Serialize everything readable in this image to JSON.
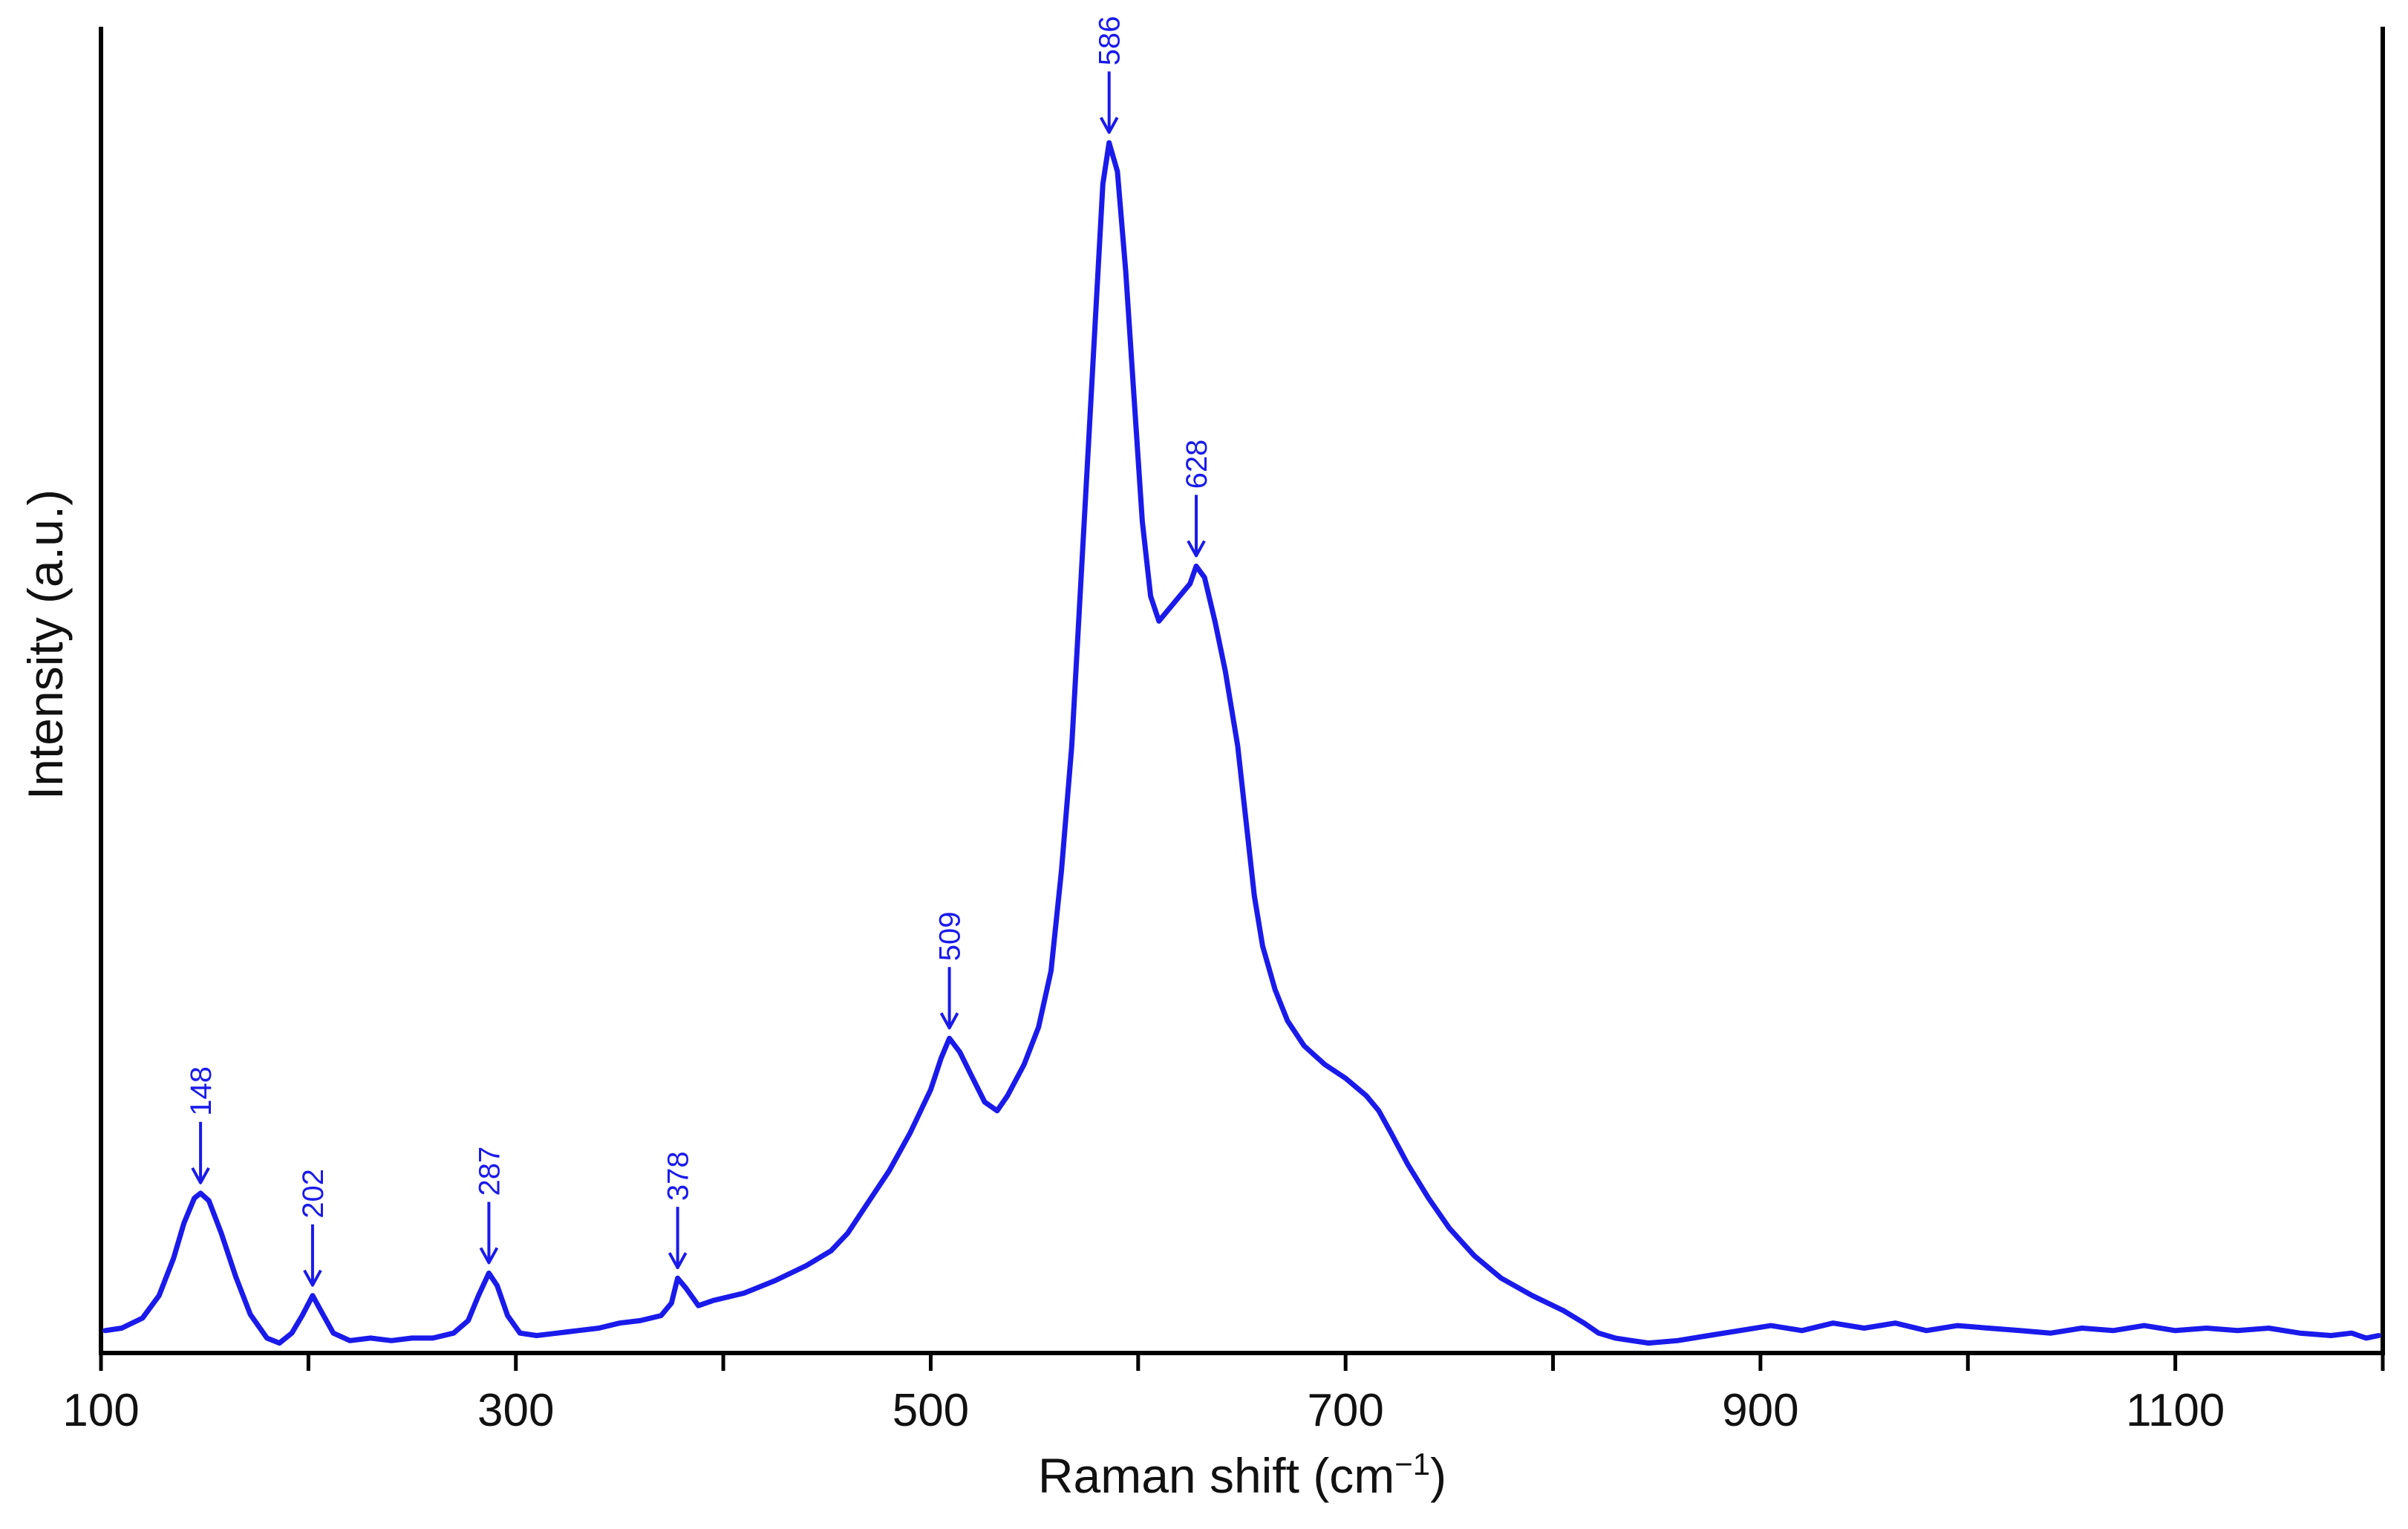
{
  "chart_data": {
    "type": "line",
    "title": "",
    "xlabel": "Raman shift (cm",
    "xlabel_superscript": "−1",
    "xlabel_suffix": ")",
    "ylabel": "Intensity (a.u.)",
    "xlim": [
      100,
      1200
    ],
    "ylim": [
      0,
      1.0
    ],
    "x_ticks_major_labeled": [
      100,
      300,
      500,
      700,
      900,
      1100
    ],
    "x_ticks_minor": [
      200,
      400,
      600,
      800,
      1000,
      1200
    ],
    "grid": false,
    "legend": "none",
    "line_color": "#1a1aeb",
    "series": [
      {
        "points": [
          [
            102,
            0.012
          ],
          [
            110,
            0.014
          ],
          [
            120,
            0.022
          ],
          [
            128,
            0.04
          ],
          [
            135,
            0.07
          ],
          [
            140,
            0.098
          ],
          [
            145,
            0.118
          ],
          [
            148,
            0.122
          ],
          [
            152,
            0.116
          ],
          [
            158,
            0.09
          ],
          [
            165,
            0.055
          ],
          [
            172,
            0.025
          ],
          [
            180,
            0.006
          ],
          [
            186,
            0.002
          ],
          [
            192,
            0.01
          ],
          [
            197,
            0.024
          ],
          [
            202,
            0.04
          ],
          [
            206,
            0.028
          ],
          [
            212,
            0.01
          ],
          [
            220,
            0.004
          ],
          [
            230,
            0.006
          ],
          [
            240,
            0.004
          ],
          [
            250,
            0.006
          ],
          [
            260,
            0.006
          ],
          [
            270,
            0.01
          ],
          [
            277,
            0.02
          ],
          [
            282,
            0.04
          ],
          [
            287,
            0.058
          ],
          [
            291,
            0.048
          ],
          [
            296,
            0.024
          ],
          [
            302,
            0.01
          ],
          [
            310,
            0.008
          ],
          [
            320,
            0.01
          ],
          [
            330,
            0.012
          ],
          [
            340,
            0.014
          ],
          [
            350,
            0.018
          ],
          [
            360,
            0.02
          ],
          [
            370,
            0.024
          ],
          [
            375,
            0.034
          ],
          [
            378,
            0.054
          ],
          [
            382,
            0.046
          ],
          [
            388,
            0.032
          ],
          [
            395,
            0.036
          ],
          [
            410,
            0.042
          ],
          [
            425,
            0.052
          ],
          [
            440,
            0.064
          ],
          [
            452,
            0.076
          ],
          [
            460,
            0.09
          ],
          [
            470,
            0.115
          ],
          [
            480,
            0.14
          ],
          [
            490,
            0.17
          ],
          [
            500,
            0.205
          ],
          [
            505,
            0.23
          ],
          [
            509,
            0.246
          ],
          [
            514,
            0.235
          ],
          [
            520,
            0.215
          ],
          [
            526,
            0.195
          ],
          [
            532,
            0.188
          ],
          [
            537,
            0.2
          ],
          [
            545,
            0.225
          ],
          [
            552,
            0.255
          ],
          [
            558,
            0.3
          ],
          [
            563,
            0.38
          ],
          [
            568,
            0.48
          ],
          [
            572,
            0.6
          ],
          [
            576,
            0.72
          ],
          [
            580,
            0.84
          ],
          [
            583,
            0.93
          ],
          [
            586,
            0.963
          ],
          [
            590,
            0.94
          ],
          [
            594,
            0.86
          ],
          [
            598,
            0.76
          ],
          [
            602,
            0.66
          ],
          [
            606,
            0.6
          ],
          [
            610,
            0.58
          ],
          [
            614,
            0.588
          ],
          [
            620,
            0.6
          ],
          [
            625,
            0.61
          ],
          [
            628,
            0.624
          ],
          [
            632,
            0.615
          ],
          [
            637,
            0.58
          ],
          [
            642,
            0.54
          ],
          [
            648,
            0.48
          ],
          [
            652,
            0.42
          ],
          [
            656,
            0.36
          ],
          [
            660,
            0.32
          ],
          [
            666,
            0.285
          ],
          [
            672,
            0.26
          ],
          [
            680,
            0.24
          ],
          [
            690,
            0.225
          ],
          [
            700,
            0.214
          ],
          [
            710,
            0.2
          ],
          [
            716,
            0.188
          ],
          [
            722,
            0.17
          ],
          [
            730,
            0.145
          ],
          [
            740,
            0.118
          ],
          [
            750,
            0.094
          ],
          [
            762,
            0.072
          ],
          [
            775,
            0.054
          ],
          [
            790,
            0.04
          ],
          [
            805,
            0.028
          ],
          [
            815,
            0.018
          ],
          [
            822,
            0.01
          ],
          [
            830,
            0.006
          ],
          [
            838,
            0.004
          ],
          [
            846,
            0.002
          ],
          [
            860,
            0.004
          ],
          [
            875,
            0.008
          ],
          [
            890,
            0.012
          ],
          [
            905,
            0.016
          ],
          [
            920,
            0.012
          ],
          [
            935,
            0.018
          ],
          [
            950,
            0.014
          ],
          [
            965,
            0.018
          ],
          [
            980,
            0.012
          ],
          [
            995,
            0.016
          ],
          [
            1010,
            0.014
          ],
          [
            1025,
            0.012
          ],
          [
            1040,
            0.01
          ],
          [
            1055,
            0.014
          ],
          [
            1070,
            0.012
          ],
          [
            1085,
            0.016
          ],
          [
            1100,
            0.012
          ],
          [
            1115,
            0.014
          ],
          [
            1130,
            0.012
          ],
          [
            1145,
            0.014
          ],
          [
            1160,
            0.01
          ],
          [
            1175,
            0.008
          ],
          [
            1185,
            0.01
          ],
          [
            1192,
            0.006
          ],
          [
            1198,
            0.008
          ]
        ]
      }
    ],
    "peak_annotations": [
      {
        "label": "148",
        "x": 148,
        "y": 0.122
      },
      {
        "label": "202",
        "x": 202,
        "y": 0.04
      },
      {
        "label": "287",
        "x": 287,
        "y": 0.058
      },
      {
        "label": "378",
        "x": 378,
        "y": 0.054
      },
      {
        "label": "509",
        "x": 509,
        "y": 0.246
      },
      {
        "label": "586",
        "x": 586,
        "y": 0.963
      },
      {
        "label": "628",
        "x": 628,
        "y": 0.624
      }
    ]
  }
}
